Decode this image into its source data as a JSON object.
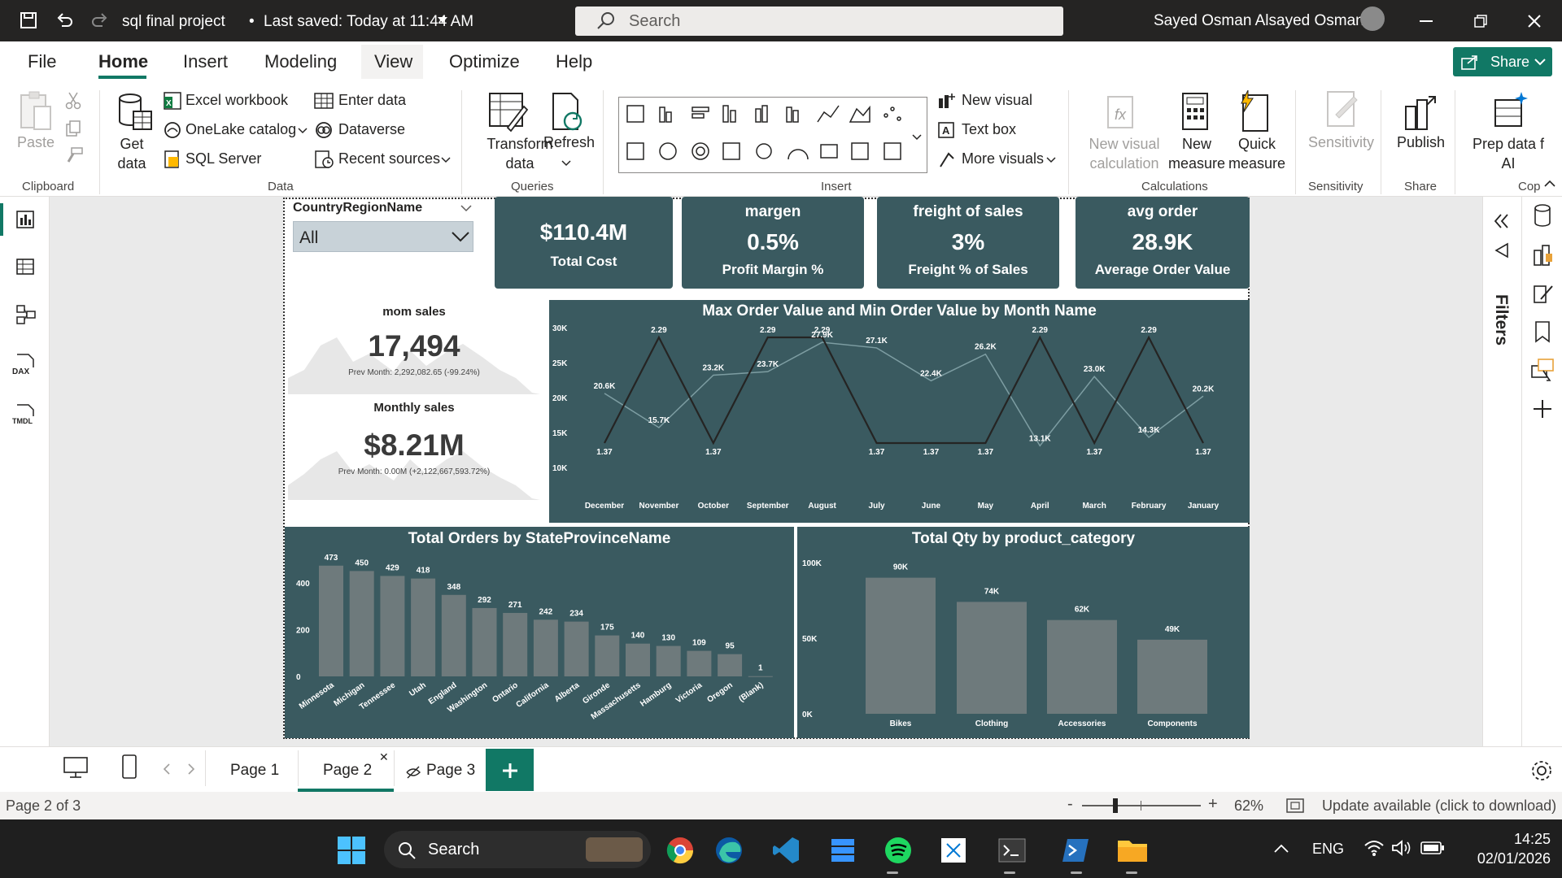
{
  "titlebar": {
    "title": "sql final project",
    "saved": "Last saved: Today at 11:44 AM",
    "search_placeholder": "Search",
    "user": "Sayed Osman Alsayed Osman"
  },
  "menu": [
    "File",
    "Home",
    "Insert",
    "Modeling",
    "View",
    "Optimize",
    "Help"
  ],
  "share_label": "Share",
  "ribbon": {
    "paste": "Paste",
    "get_data": "Get data",
    "excel": "Excel workbook",
    "onelake": "OneLake catalog",
    "sql": "SQL Server",
    "enter_data": "Enter data",
    "dataverse": "Dataverse",
    "recent": "Recent sources",
    "transform": "Transform data",
    "refresh": "Refresh",
    "new_visual": "New visual",
    "text_box": "Text box",
    "more_visuals": "More visuals",
    "new_visual_calc": "New visual calculation",
    "new_measure": "New measure",
    "quick_measure": "Quick measure",
    "sensitivity": "Sensitivity",
    "publish": "Publish",
    "prep": "Prep data f AI",
    "groups": {
      "clipboard": "Clipboard",
      "data": "Data",
      "queries": "Queries",
      "insert": "Insert",
      "calculations": "Calculations",
      "sensitivity": "Sensitivity",
      "share": "Share",
      "copilot": "Cop"
    }
  },
  "slicer": {
    "title": "CountryRegionName",
    "value": "All"
  },
  "cards": [
    {
      "title": "",
      "value": "$110.4M",
      "label": "Total Cost"
    },
    {
      "title": "margen",
      "value": "0.5%",
      "label": "Profit Margin %"
    },
    {
      "title": "freight of sales",
      "value": "3%",
      "label": "Freight % of Sales"
    },
    {
      "title": "avg order",
      "value": "28.9K",
      "label": "Average Order Value"
    }
  ],
  "kpi1": {
    "title": "mom sales",
    "value": "17,494",
    "prev": "Prev Month: 2,292,082.65 (-99.24%)"
  },
  "kpi2": {
    "title": "Monthly sales",
    "value": "$8.21M",
    "prev": "Prev Month: 0.00M (+2,122,667,593.72%)"
  },
  "chart_data": [
    {
      "type": "line",
      "title": "Max Order Value and Min Order Value by Month Name",
      "categories": [
        "December",
        "November",
        "October",
        "September",
        "August",
        "July",
        "June",
        "May",
        "April",
        "March",
        "February",
        "January"
      ],
      "ylim": [
        10000,
        30000
      ],
      "yticks": [
        "10K",
        "15K",
        "20K",
        "25K",
        "30K"
      ],
      "series": [
        {
          "values": [
            20600,
            15700,
            23200,
            23700,
            27900,
            27100,
            22400,
            26200,
            13100,
            23000,
            14300,
            20200
          ],
          "labels": [
            "20.6K",
            "15.7K",
            "23.2K",
            "23.7K",
            "27.9K",
            "27.1K",
            "22.4K",
            "26.2K",
            "13.1K",
            "23.0K",
            "14.3K",
            "20.2K"
          ]
        },
        {
          "values": [
            1.37,
            2.29,
            1.37,
            2.29,
            2.29,
            1.37,
            1.37,
            1.37,
            2.29,
            1.37,
            2.29,
            1.37
          ],
          "labels": [
            "1.37",
            "2.29",
            "1.37",
            "2.29",
            "2.29",
            "1.37",
            "1.37",
            "1.37",
            "2.29",
            "1.37",
            "2.29",
            "1.37"
          ]
        }
      ]
    },
    {
      "type": "bar",
      "title": "Total Orders by StateProvinceName",
      "categories": [
        "Minnesota",
        "Michigan",
        "Tennessee",
        "Utah",
        "England",
        "Washington",
        "Ontario",
        "California",
        "Alberta",
        "Gironde",
        "Massachusetts",
        "Hamburg",
        "Victoria",
        "Oregon",
        "(Blank)"
      ],
      "values": [
        473,
        450,
        429,
        418,
        348,
        292,
        271,
        242,
        234,
        175,
        140,
        130,
        109,
        95,
        1
      ],
      "ylim": [
        0,
        500
      ],
      "yticks": [
        "0",
        "200",
        "400"
      ]
    },
    {
      "type": "bar",
      "title": "Total Qty by product_category",
      "categories": [
        "Bikes",
        "Clothing",
        "Accessories",
        "Components"
      ],
      "values": [
        90000,
        74000,
        62000,
        49000
      ],
      "labels": [
        "90K",
        "74K",
        "62K",
        "49K"
      ],
      "ylim": [
        0,
        100000
      ],
      "yticks": [
        "0K",
        "50K",
        "100K"
      ]
    }
  ],
  "filters_label": "Filters",
  "tabs": [
    "Page 1",
    "Page 2",
    "Page 3"
  ],
  "status": {
    "page": "Page 2 of 3",
    "zoom": "62%",
    "update": "Update available (click to download)"
  },
  "taskbar": {
    "search": "Search",
    "lang": "ENG",
    "time": "14:25",
    "date": "02/01/2026"
  },
  "colors": {
    "panel": "#3a5a60",
    "bar": "#6e7a7c",
    "accent": "#117865"
  }
}
